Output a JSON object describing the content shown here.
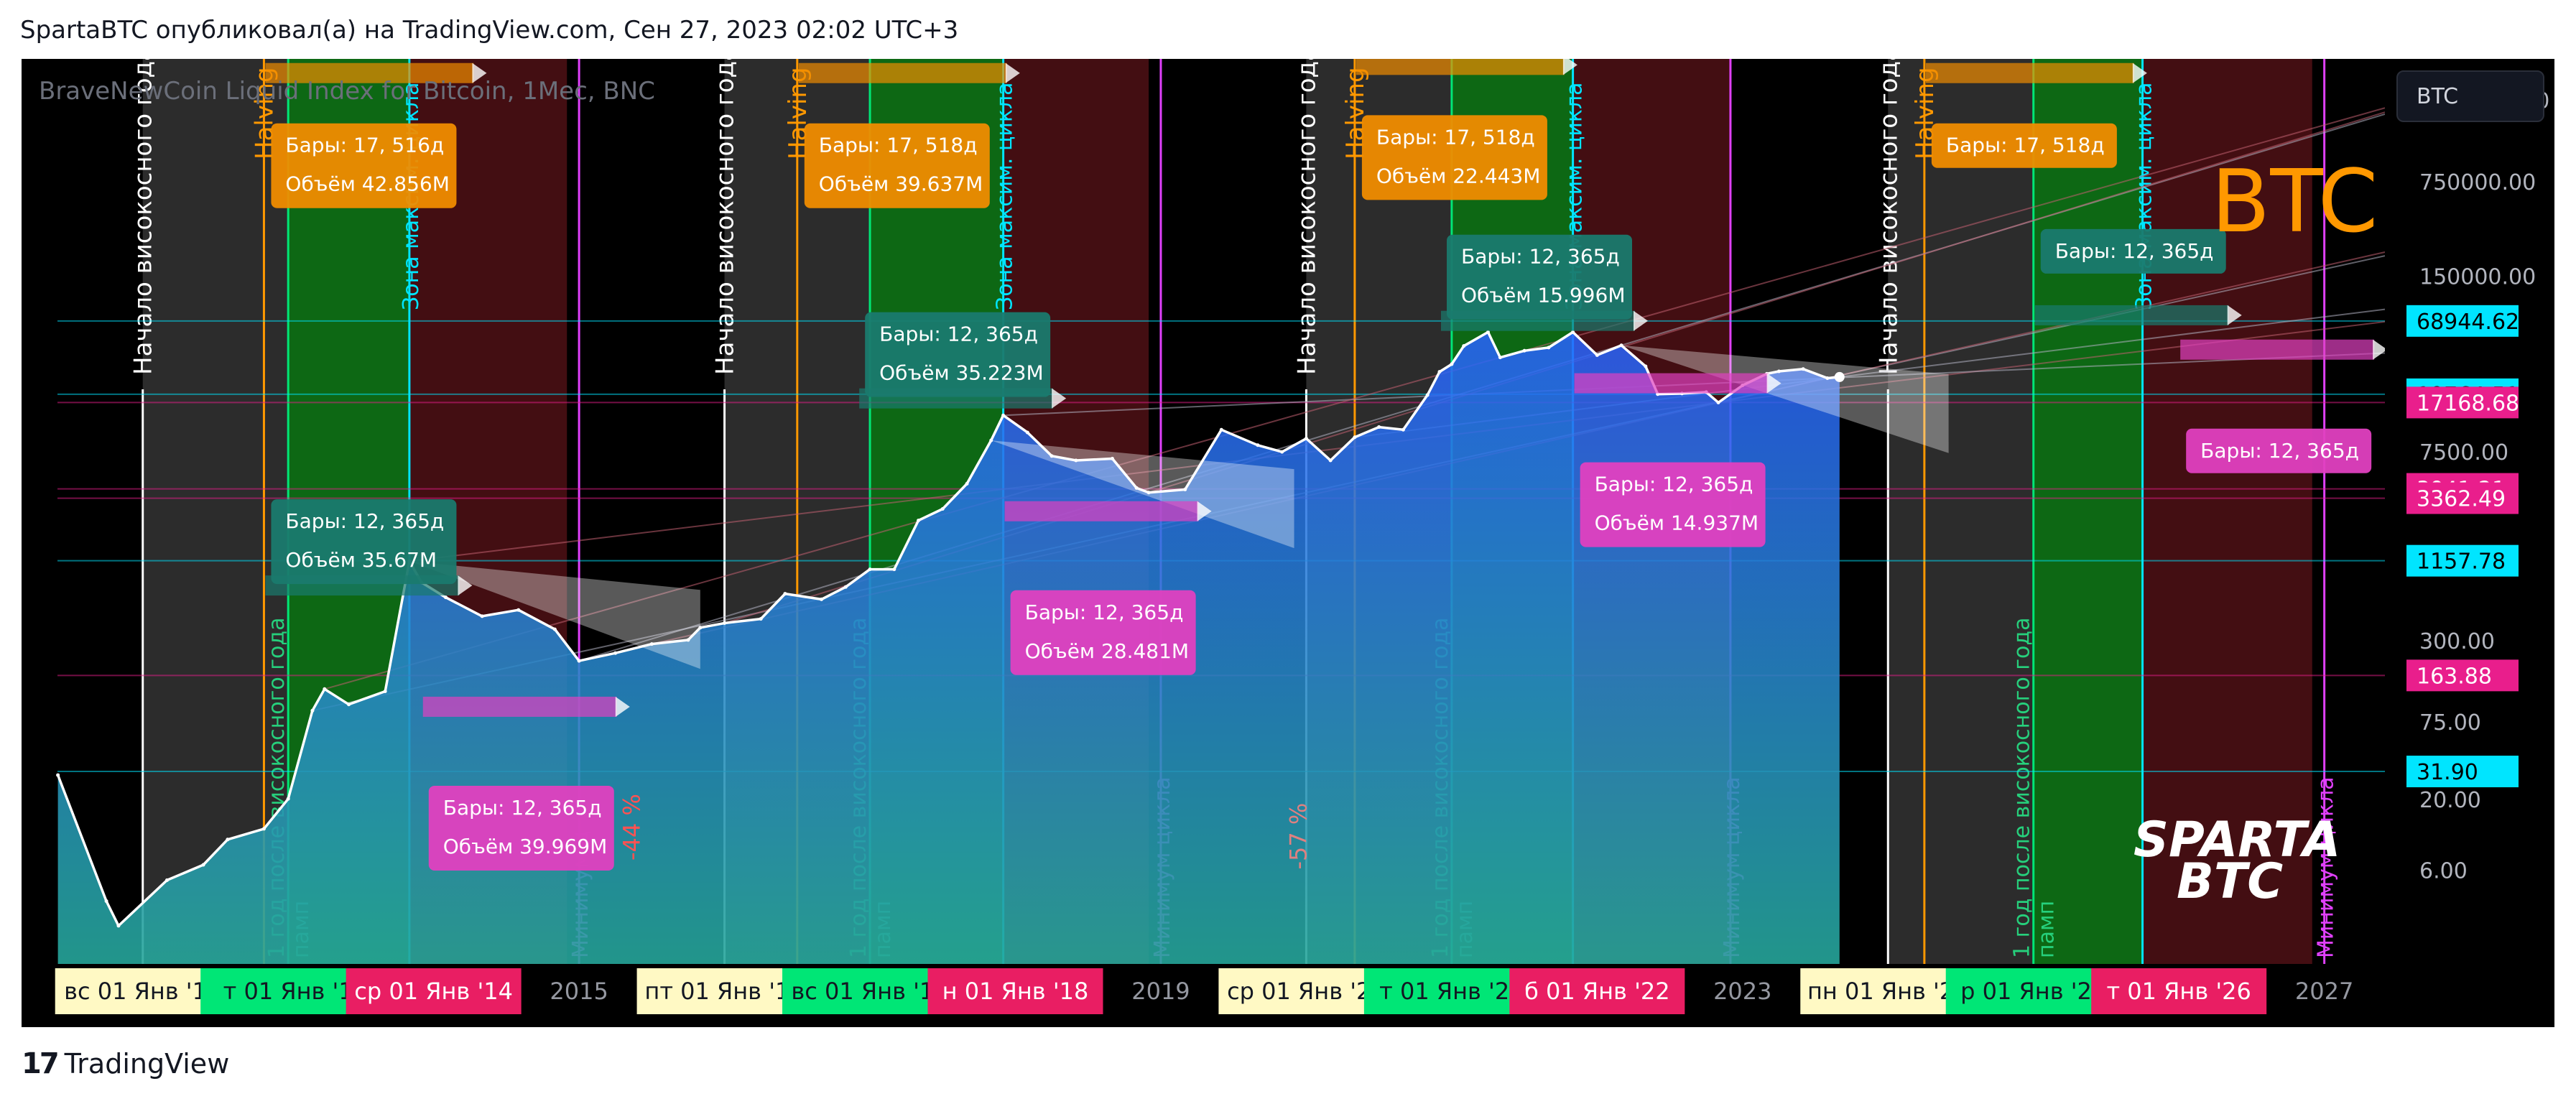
{
  "header": {
    "text": "SpartaBTC опубликовал(а) на TradingView.com, Сен 27, 2023 02:02 UTC+3"
  },
  "footer": {
    "logo_text": "TradingView",
    "logo_mark": "17"
  },
  "symbol_box": {
    "value": "BTC"
  },
  "chart_data": {
    "type": "area",
    "title": "BraveNewCoin Liquid Index for Bitcoin, 1Мес, BNC",
    "watermark": "BTC",
    "brand_mark": [
      "SPARTA",
      "BTC"
    ],
    "y_scale": "log",
    "ylim": [
      1.2,
      6000000
    ],
    "x_range": [
      "2011-03",
      "2027-06"
    ],
    "colors": {
      "line": "#ffffff",
      "area_top": "#2962ff",
      "area_bottom": "#26a69a",
      "accumulation": "#8a8a8a",
      "growth": "#0f7a18",
      "decline": "#4a0f14",
      "halving": "#ff9800",
      "green_line": "#00e676",
      "cyan_line": "#00e5ff",
      "magenta_line": "#e040fb",
      "white_line": "#ffffff"
    },
    "price_series": {
      "x": [
        "2011-06",
        "2011-10",
        "2011-11",
        "2012-03",
        "2012-06",
        "2012-08",
        "2012-11",
        "2013-01",
        "2013-03",
        "2013-04",
        "2013-06",
        "2013-09",
        "2013-11",
        "2013-12",
        "2014-02",
        "2014-05",
        "2014-08",
        "2014-11",
        "2015-01",
        "2015-04",
        "2015-07",
        "2015-10",
        "2015-11",
        "2016-01",
        "2016-04",
        "2016-06",
        "2016-09",
        "2016-11",
        "2017-01",
        "2017-03",
        "2017-05",
        "2017-07",
        "2017-09",
        "2017-11",
        "2017-12",
        "2018-02",
        "2018-04",
        "2018-06",
        "2018-09",
        "2018-11",
        "2018-12",
        "2019-03",
        "2019-06",
        "2019-09",
        "2019-11",
        "2020-01",
        "2020-03",
        "2020-05",
        "2020-07",
        "2020-09",
        "2020-11",
        "2020-12",
        "2021-01",
        "2021-02",
        "2021-04",
        "2021-05",
        "2021-07",
        "2021-09",
        "2021-11",
        "2022-01",
        "2022-03",
        "2022-05",
        "2022-06",
        "2022-08",
        "2022-10",
        "2022-11",
        "2023-01",
        "2023-03",
        "2023-04",
        "2023-06",
        "2023-08",
        "2023-09"
      ],
      "y": [
        30,
        3.5,
        2.3,
        5,
        6.5,
        10,
        12,
        20,
        90,
        130,
        100,
        125,
        1150,
        800,
        620,
        450,
        500,
        360,
        210,
        240,
        280,
        300,
        370,
        400,
        430,
        660,
        600,
        740,
        1000,
        1000,
        2300,
        2800,
        4300,
        9000,
        13800,
        10300,
        6900,
        6400,
        6600,
        4000,
        3700,
        3900,
        10800,
        8300,
        7400,
        9300,
        6400,
        9500,
        11300,
        10800,
        19500,
        29000,
        33000,
        45000,
        57000,
        37000,
        41500,
        43800,
        57000,
        38500,
        45500,
        31800,
        19800,
        20000,
        20500,
        17168,
        23000,
        28000,
        29200,
        30400,
        26000,
        26500
      ]
    },
    "cycles": [
      {
        "leap_year_start": "2012-01",
        "halving": "2012-11",
        "post_leap_year": "2013-01",
        "cycle_max_zone": "2013-11",
        "decline_end": "2014-12",
        "cycle_min": "2015-01"
      },
      {
        "leap_year_start": "2016-01",
        "halving": "2016-07",
        "post_leap_year": "2017-01",
        "cycle_max_zone": "2017-12",
        "decline_end": "2018-12",
        "cycle_min": "2019-01"
      },
      {
        "leap_year_start": "2020-01",
        "halving": "2020-05",
        "post_leap_year": "2021-01",
        "cycle_max_zone": "2021-11",
        "decline_end": "2022-12",
        "cycle_min": "2022-12"
      },
      {
        "leap_year_start": "2024-01",
        "halving": "2024-04",
        "post_leap_year": "2025-01",
        "cycle_max_zone": "2025-10",
        "decline_end": "2026-12",
        "cycle_min": "2027-01"
      }
    ],
    "vertical_labels": {
      "leap_year_start": "Начало високосного года",
      "halving": "Halving",
      "cycle_max_zone": "Зона максим. цикла",
      "post_leap_year_1": "1 год после високосного года",
      "post_leap_year_2": "памп",
      "cycle_min": "Минимум цикла",
      "cycle_min_short": "Минимум ц"
    },
    "drawdown_labels": [
      {
        "text": "-44 %",
        "x": "2015-06",
        "y": 7
      },
      {
        "text": "-57 %",
        "x": "2020-01",
        "y": 6
      }
    ],
    "info_boxes": [
      {
        "line1": "Бары: 17, 516д",
        "line2": "Объём 42.856M",
        "x": "2012-11",
        "y": 2000000,
        "color": "#f08c00"
      },
      {
        "line1": "Бары: 12, 365д",
        "line2": "Объём 35.67M",
        "x": "2012-11",
        "y": 3300,
        "color": "#1a7a6e"
      },
      {
        "line1": "Бары: 12, 365д",
        "line2": "Объём 39.969M",
        "x": "2013-12",
        "y": 25,
        "color": "#e040c0"
      },
      {
        "line1": "Бары: 17, 518д",
        "line2": "Объём 39.637M",
        "x": "2016-07",
        "y": 2000000,
        "color": "#f08c00"
      },
      {
        "line1": "Бары: 12, 365д",
        "line2": "Объём 35.223M",
        "x": "2016-12",
        "y": 80000,
        "color": "#1a7a6e"
      },
      {
        "line1": "Бары: 12, 365д",
        "line2": "Объём 28.481M",
        "x": "2017-12",
        "y": 700,
        "color": "#e040c0"
      },
      {
        "line1": "Бары: 17, 518д",
        "line2": "Объём 22.443M",
        "x": "2020-05",
        "y": 2300000,
        "color": "#f08c00"
      },
      {
        "line1": "Бары: 12, 365д",
        "line2": "Объём 15.996M",
        "x": "2020-12",
        "y": 300000,
        "color": "#1a7a6e"
      },
      {
        "line1": "Бары: 12, 365д",
        "line2": "Объём 14.937M",
        "x": "2021-11",
        "y": 6200,
        "color": "#e040c0"
      },
      {
        "line1": "Бары: 17, 518д",
        "line2": "",
        "x": "2024-04",
        "y": 2000000,
        "color": "#f08c00"
      },
      {
        "line1": "Бары: 12, 365д",
        "line2": "",
        "x": "2025-01",
        "y": 330000,
        "color": "#1a7a6e"
      },
      {
        "line1": "Бары: 12, 365д",
        "line2": "",
        "x": "2026-01",
        "y": 11000,
        "color": "#e040c0"
      }
    ],
    "y_ticks": [
      "3000000.00",
      "750000.00",
      "150000.00",
      "7500.00",
      "300.00",
      "75.00",
      "20.00",
      "6.00"
    ],
    "price_tags": [
      {
        "label": "68944.62",
        "color": "#00e5ff"
      },
      {
        "label": "19764.51",
        "color": "#00e5ff"
      },
      {
        "label": "17168.68",
        "color": "#e91e8c"
      },
      {
        "label": "3941.21",
        "color": "#e91e8c"
      },
      {
        "label": "3362.49",
        "color": "#e91e8c"
      },
      {
        "label": "1157.78",
        "color": "#00e5ff"
      },
      {
        "label": "163.88",
        "color": "#e91e8c"
      },
      {
        "label": "31.90",
        "color": "#00e5ff"
      }
    ],
    "x_ticks": [
      {
        "label": "вс 01 Янв '12",
        "x": "2012-01",
        "style": "yellow"
      },
      {
        "label": "т 01 Янв '1",
        "x": "2013-01",
        "style": "green"
      },
      {
        "label": "ср 01 Янв '14",
        "x": "2014-01",
        "style": "red"
      },
      {
        "label": "2015",
        "x": "2015-01",
        "style": "plain"
      },
      {
        "label": "пт 01 Янв '16",
        "x": "2016-01",
        "style": "yellow"
      },
      {
        "label": "вс 01 Янв '17",
        "x": "2017-01",
        "style": "green"
      },
      {
        "label": "н 01 Янв '18",
        "x": "2018-01",
        "style": "red"
      },
      {
        "label": "2019",
        "x": "2019-01",
        "style": "plain"
      },
      {
        "label": "ср 01 Янв '20",
        "x": "2020-01",
        "style": "yellow"
      },
      {
        "label": "т 01 Янв '21",
        "x": "2021-01",
        "style": "green"
      },
      {
        "label": "б 01 Янв '22",
        "x": "2022-01",
        "style": "red"
      },
      {
        "label": "2023",
        "x": "2023-01",
        "style": "plain"
      },
      {
        "label": "пн 01 Янв '24",
        "x": "2024-01",
        "style": "yellow"
      },
      {
        "label": "р 01 Янв '25",
        "x": "2025-01",
        "style": "green"
      },
      {
        "label": "т 01 Янв '26",
        "x": "2026-01",
        "style": "red"
      },
      {
        "label": "2027",
        "x": "2027-01",
        "style": "plain"
      }
    ]
  }
}
